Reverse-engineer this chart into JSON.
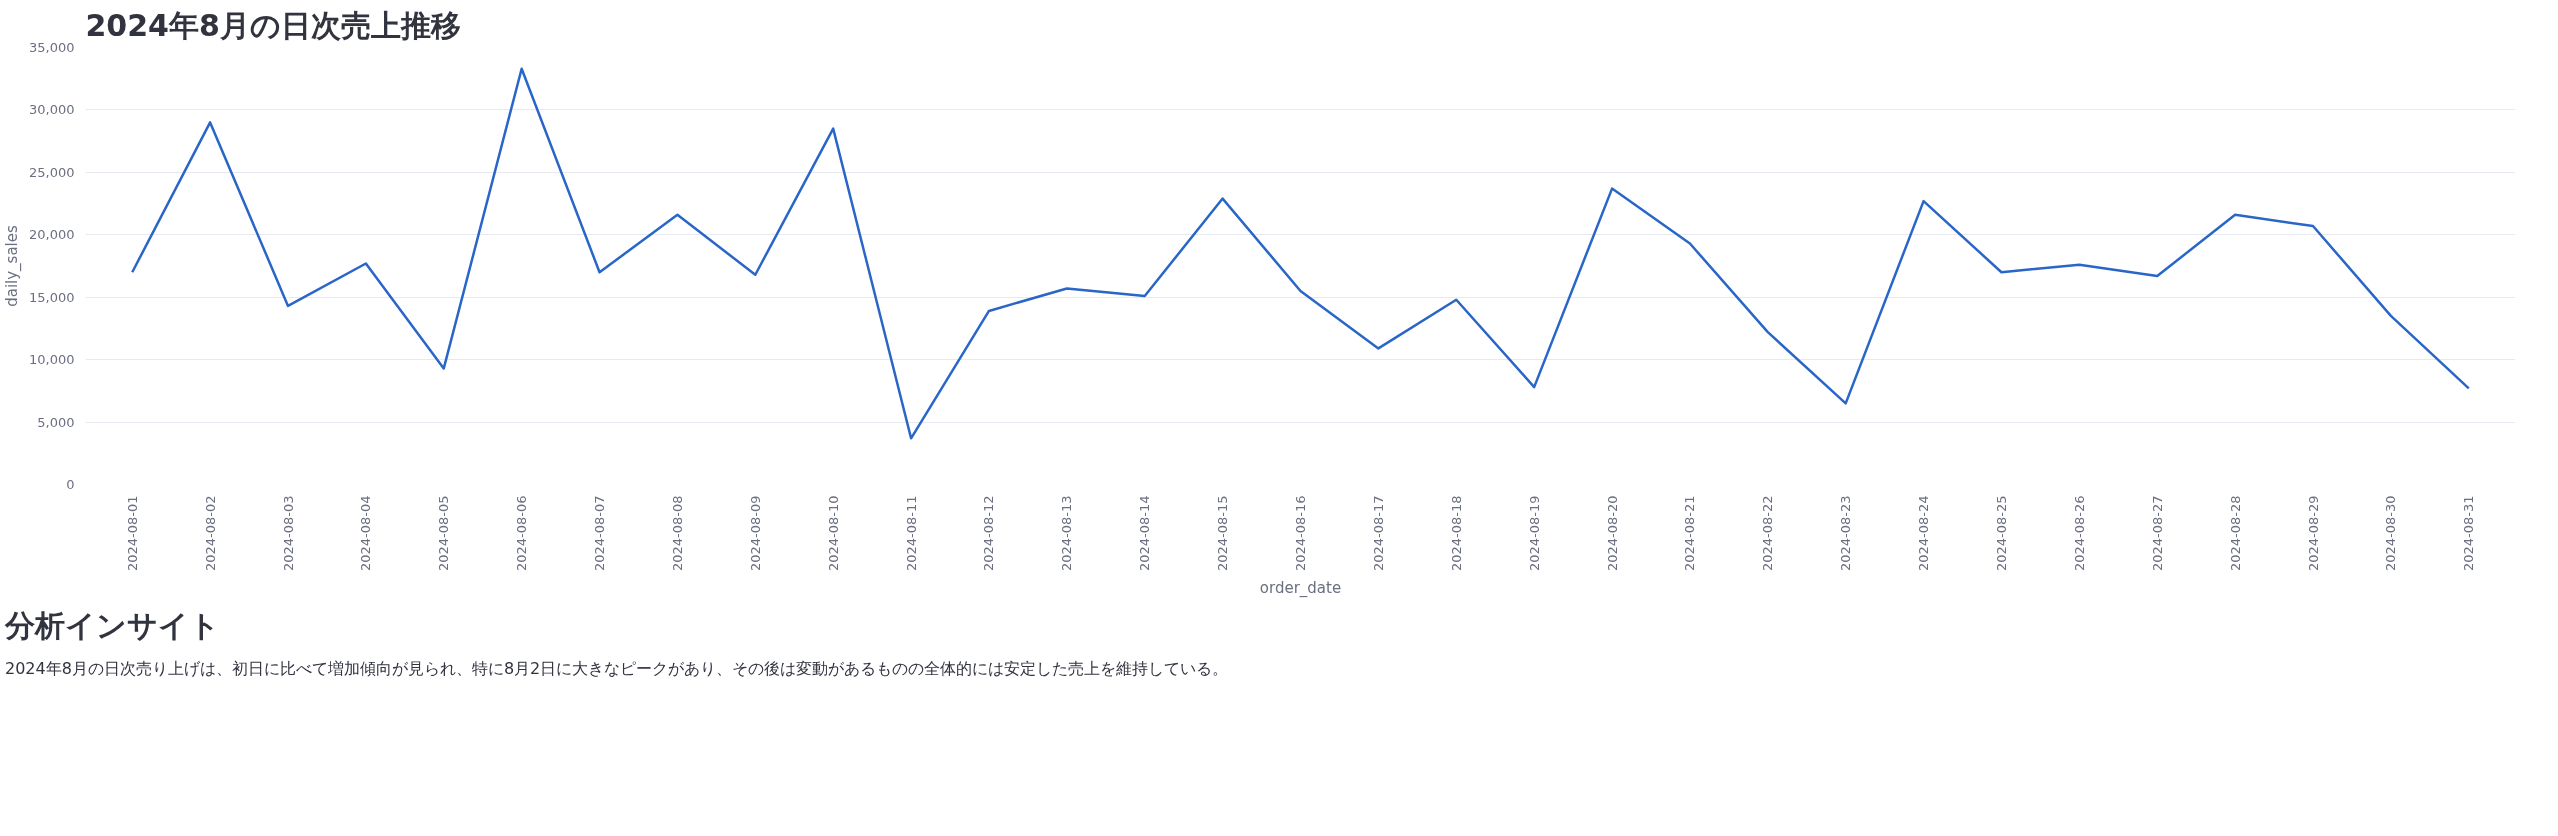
{
  "chart_data": {
    "type": "line",
    "title": "2024年8月の日次売上推移",
    "xlabel": "order_date",
    "ylabel": "daily_sales",
    "categories": [
      "2024-08-01",
      "2024-08-02",
      "2024-08-03",
      "2024-08-04",
      "2024-08-05",
      "2024-08-06",
      "2024-08-07",
      "2024-08-08",
      "2024-08-09",
      "2024-08-10",
      "2024-08-11",
      "2024-08-12",
      "2024-08-13",
      "2024-08-14",
      "2024-08-15",
      "2024-08-16",
      "2024-08-17",
      "2024-08-18",
      "2024-08-19",
      "2024-08-20",
      "2024-08-21",
      "2024-08-22",
      "2024-08-23",
      "2024-08-24",
      "2024-08-25",
      "2024-08-26",
      "2024-08-27",
      "2024-08-28",
      "2024-08-29",
      "2024-08-30",
      "2024-08-31"
    ],
    "series": [
      {
        "color": "#2966c8",
        "values": [
          17000,
          29000,
          14300,
          17700,
          9300,
          33300,
          17000,
          21600,
          16800,
          28500,
          3700,
          13900,
          15700,
          15100,
          22900,
          15500,
          10900,
          14800,
          7800,
          23700,
          19300,
          12200,
          6500,
          22700,
          17000,
          17600,
          16700,
          21600,
          20700,
          13500,
          7700
        ]
      }
    ],
    "ylim": [
      0,
      35000
    ],
    "yticks": [
      {
        "value": 0,
        "label": "0"
      },
      {
        "value": 5000,
        "label": "5,000"
      },
      {
        "value": 10000,
        "label": "10,000"
      },
      {
        "value": 15000,
        "label": "15,000"
      },
      {
        "value": 20000,
        "label": "20,000"
      },
      {
        "value": 25000,
        "label": "25,000"
      },
      {
        "value": 30000,
        "label": "30,000"
      },
      {
        "value": 35000,
        "label": "35,000"
      }
    ],
    "grid": "y",
    "line_style": "solid",
    "annotations": [
      "分析インサイト",
      "2024年8月の日次売り上げは、初日に比べて増加傾向が見られ、特に8月2日に大きなピークがあり、その後は変動があるものの全体的には安定した売上を維持している。"
    ]
  }
}
